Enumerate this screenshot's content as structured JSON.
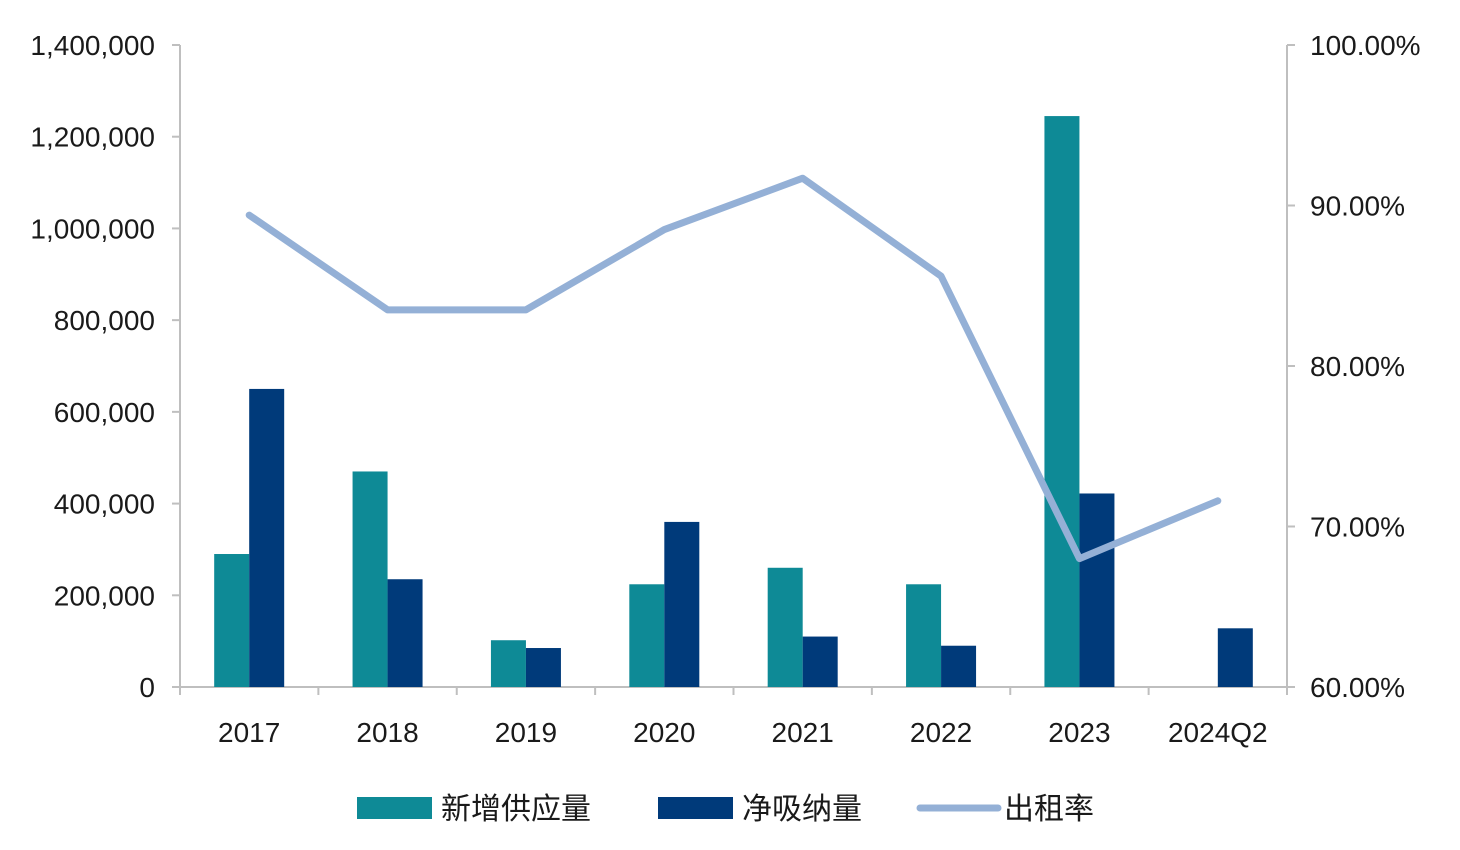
{
  "chart_data": {
    "type": "bar",
    "categories": [
      "2017",
      "2018",
      "2019",
      "2020",
      "2021",
      "2022",
      "2023",
      "2024Q2"
    ],
    "series": [
      {
        "name": "新增供应量",
        "kind": "bar",
        "axis": "left",
        "color": "#0e8a96",
        "values": [
          290000,
          470000,
          102000,
          224000,
          260000,
          224000,
          1245000,
          null
        ]
      },
      {
        "name": "净吸纳量",
        "kind": "bar",
        "axis": "left",
        "color": "#003a7a",
        "values": [
          650000,
          235000,
          85000,
          360000,
          110000,
          90000,
          422000,
          128000
        ]
      },
      {
        "name": "出租率",
        "kind": "line",
        "axis": "right",
        "color": "#94b0d6",
        "values": [
          0.894,
          0.835,
          0.835,
          0.885,
          0.917,
          0.856,
          0.68,
          0.716
        ]
      }
    ],
    "left_axis": {
      "min": 0,
      "max": 1400000,
      "step": 200000,
      "tick_labels": [
        "0",
        "200,000",
        "400,000",
        "600,000",
        "800,000",
        "1,000,000",
        "1,200,000",
        "1,400,000"
      ]
    },
    "right_axis": {
      "min": 0.6,
      "max": 1.0,
      "step": 0.1,
      "tick_labels": [
        "60.00%",
        "70.00%",
        "80.00%",
        "90.00%",
        "100.00%"
      ]
    },
    "title": "",
    "grid": false,
    "legend_position": "bottom-center"
  }
}
